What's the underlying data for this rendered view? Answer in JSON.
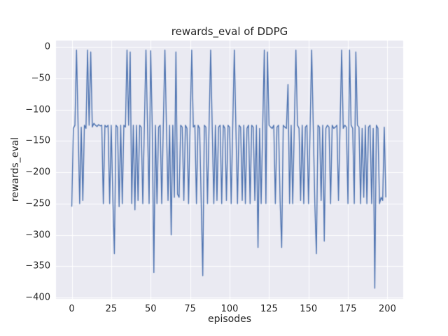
{
  "figure": {
    "background": "#ffffff"
  },
  "chart_data": {
    "type": "line",
    "title": "rewards_eval of DDPG",
    "xlabel": "episodes",
    "ylabel": "rewards_eval",
    "xticks": [
      0,
      25,
      50,
      75,
      100,
      125,
      150,
      175,
      200
    ],
    "yticks": [
      0,
      -50,
      -100,
      -150,
      -200,
      -250,
      -300,
      -350,
      -400
    ],
    "xlim": [
      -10,
      210
    ],
    "ylim": [
      -402,
      10
    ],
    "grid": true,
    "legend_position": "none",
    "plot_bg": "#eaeaf2",
    "grid_color": "#ffffff",
    "text_color": "#262626",
    "series": [
      {
        "name": "rewards_eval",
        "color": "#4c72b0",
        "x_start": 0,
        "x_step": 1,
        "values": [
          -255,
          -130,
          -125,
          -5,
          -125,
          -250,
          -128,
          -245,
          -125,
          -130,
          -5,
          -125,
          -8,
          -128,
          -122,
          -125,
          -127,
          -124,
          -126,
          -125,
          -250,
          -125,
          -128,
          -125,
          -250,
          -125,
          -240,
          -330,
          -125,
          -128,
          -255,
          -125,
          -250,
          -125,
          -128,
          -5,
          -125,
          -8,
          -250,
          -125,
          -260,
          -125,
          -245,
          -125,
          -128,
          -250,
          -125,
          -5,
          -128,
          -250,
          -6,
          -130,
          -360,
          -125,
          -250,
          -128,
          -125,
          -250,
          -125,
          -5,
          -130,
          -245,
          -125,
          -300,
          -125,
          -240,
          -8,
          -235,
          -240,
          -125,
          -128,
          -245,
          -125,
          -130,
          -250,
          -125,
          -5,
          -128,
          -125,
          -250,
          -125,
          -130,
          -245,
          -365,
          -125,
          -128,
          -250,
          -125,
          -5,
          -130,
          -250,
          -125,
          -245,
          -128,
          -125,
          -250,
          -125,
          -130,
          -245,
          -125,
          -128,
          -250,
          -125,
          -5,
          -130,
          -250,
          -125,
          -128,
          -245,
          -125,
          -250,
          -130,
          -125,
          -250,
          -125,
          -128,
          -245,
          -125,
          -320,
          -130,
          -250,
          -125,
          -5,
          -250,
          -8,
          -125,
          -128,
          -130,
          -125,
          -250,
          -128,
          -125,
          -245,
          -320,
          -125,
          -128,
          -130,
          -60,
          -250,
          -125,
          -250,
          -128,
          -5,
          -125,
          -130,
          -245,
          -125,
          -250,
          -128,
          -125,
          -250,
          -130,
          -5,
          -125,
          -250,
          -330,
          -125,
          -128,
          -245,
          -125,
          -310,
          -130,
          -125,
          -128,
          -250,
          -125,
          -130,
          -128,
          -125,
          -245,
          -125,
          -5,
          -130,
          -125,
          -128,
          -250,
          -5,
          -125,
          -130,
          -250,
          -8,
          -125,
          -128,
          -250,
          -130,
          -240,
          -125,
          -250,
          -128,
          -125,
          -250,
          -130,
          -385,
          -125,
          -130,
          -250,
          -240,
          -245,
          -128,
          -240
        ]
      }
    ]
  }
}
